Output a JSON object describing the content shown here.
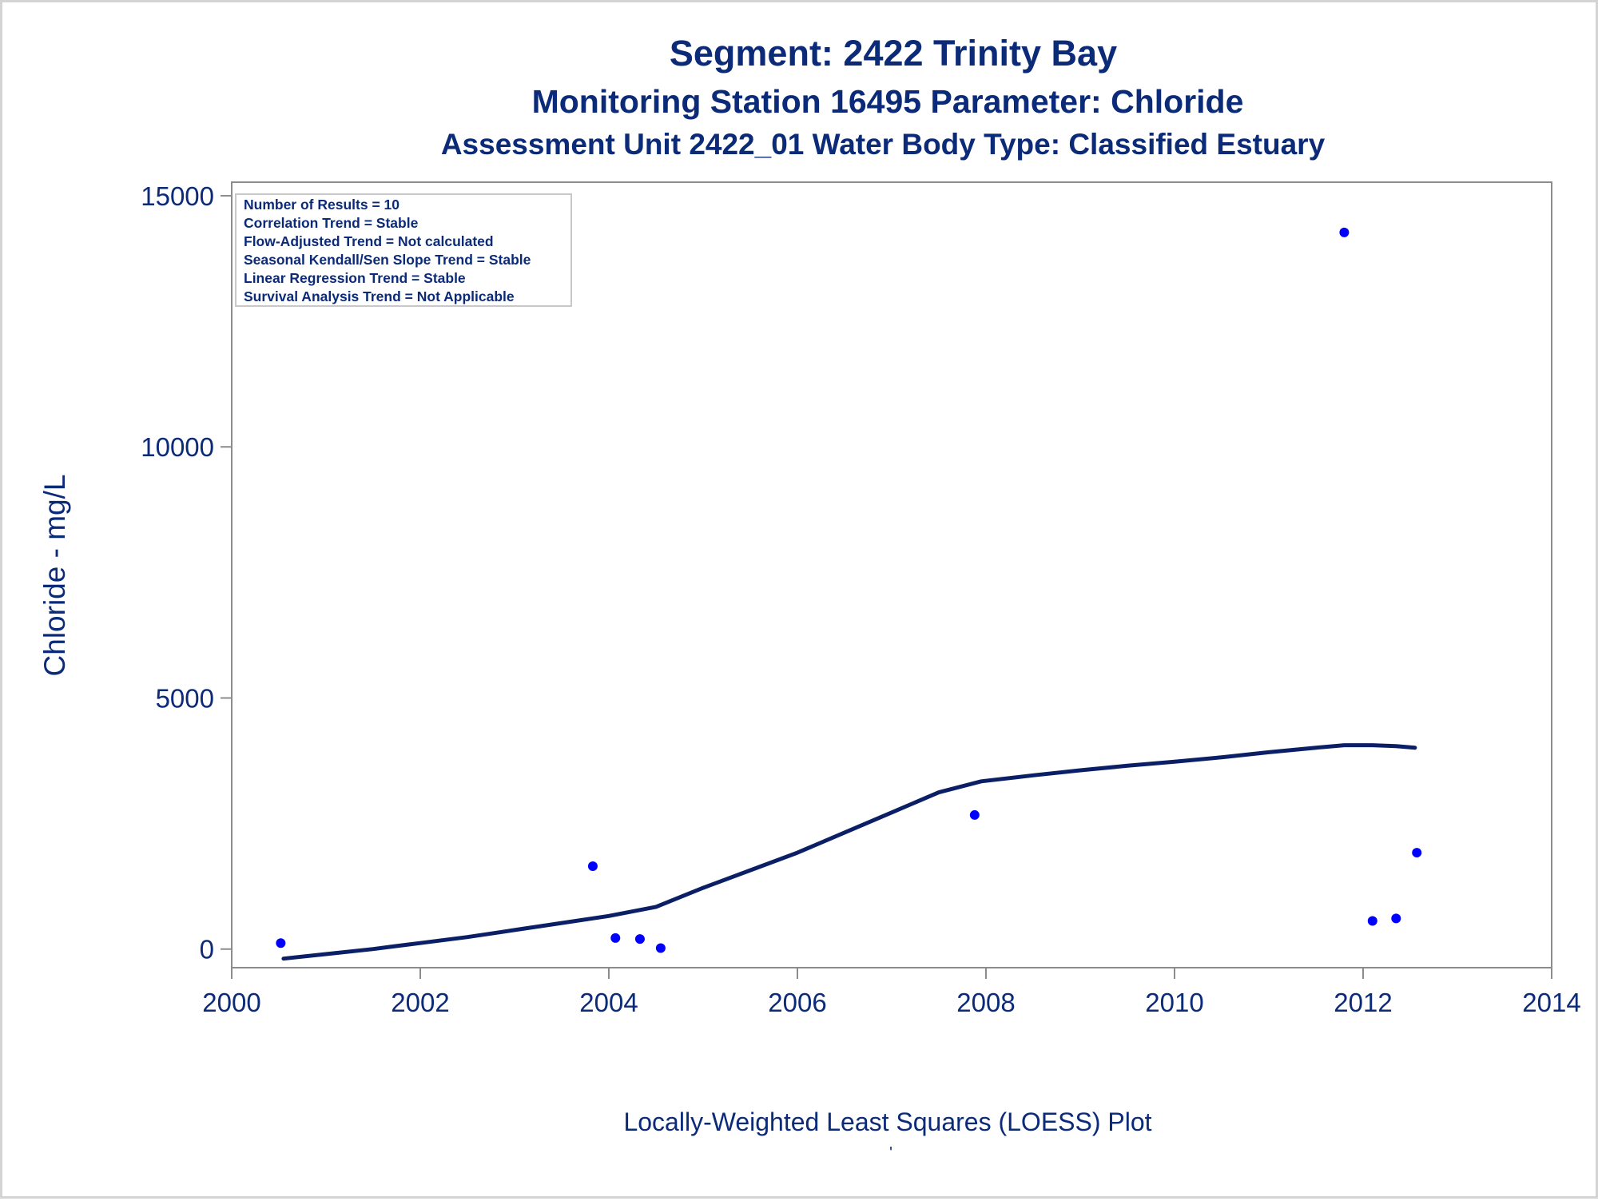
{
  "chart_data": {
    "type": "scatter",
    "title": "Segment: 2422  Trinity Bay",
    "subtitle": "Monitoring Station 16495 Parameter: Chloride",
    "subtitle2": "Assessment Unit 2422_01   Water Body Type: Classified Estuary",
    "xlabel": "Locally-Weighted Least Squares (LOESS) Plot",
    "ylabel": "Chloride - mg/L",
    "footnote": "'",
    "xlim": [
      2000,
      2014
    ],
    "ylim": [
      -370,
      15270
    ],
    "x_ticks": [
      2000,
      2002,
      2004,
      2006,
      2008,
      2010,
      2012,
      2014
    ],
    "y_ticks": [
      0,
      5000,
      10000,
      15000
    ],
    "grid": false,
    "legend": "none",
    "inset_box": {
      "position": "top-left",
      "lines": [
        "Number of Results = 10",
        "Correlation Trend = Stable",
        "Flow-Adjusted Trend = Not calculated",
        "Seasonal Kendall/Sen Slope Trend = Stable",
        "Linear Regression Trend = Stable",
        "Survival Analysis Trend = Not Applicable"
      ]
    },
    "series": [
      {
        "kind": "points",
        "color": "#0000ff",
        "points": [
          {
            "x": 2000.52,
            "y": 120
          },
          {
            "x": 2003.83,
            "y": 1650
          },
          {
            "x": 2004.07,
            "y": 220
          },
          {
            "x": 2004.33,
            "y": 200
          },
          {
            "x": 2004.55,
            "y": 20
          },
          {
            "x": 2007.88,
            "y": 2670
          },
          {
            "x": 2011.8,
            "y": 14270
          },
          {
            "x": 2012.1,
            "y": 560
          },
          {
            "x": 2012.35,
            "y": 610
          },
          {
            "x": 2012.57,
            "y": 1920
          }
        ]
      },
      {
        "kind": "loess",
        "color": "#0b1f66",
        "points": [
          {
            "x": 2000.55,
            "y": -190
          },
          {
            "x": 2001.0,
            "y": -100
          },
          {
            "x": 2001.5,
            "y": 0
          },
          {
            "x": 2001.7,
            "y": 50
          },
          {
            "x": 2002.0,
            "y": 120
          },
          {
            "x": 2002.5,
            "y": 240
          },
          {
            "x": 2003.0,
            "y": 380
          },
          {
            "x": 2003.5,
            "y": 520
          },
          {
            "x": 2004.0,
            "y": 660
          },
          {
            "x": 2004.5,
            "y": 840
          },
          {
            "x": 2005.0,
            "y": 1220
          },
          {
            "x": 2005.5,
            "y": 1570
          },
          {
            "x": 2006.0,
            "y": 1920
          },
          {
            "x": 2006.5,
            "y": 2320
          },
          {
            "x": 2007.0,
            "y": 2720
          },
          {
            "x": 2007.5,
            "y": 3120
          },
          {
            "x": 2007.95,
            "y": 3340
          },
          {
            "x": 2008.5,
            "y": 3460
          },
          {
            "x": 2009.0,
            "y": 3560
          },
          {
            "x": 2009.5,
            "y": 3650
          },
          {
            "x": 2010.0,
            "y": 3730
          },
          {
            "x": 2010.5,
            "y": 3820
          },
          {
            "x": 2011.0,
            "y": 3920
          },
          {
            "x": 2011.5,
            "y": 4010
          },
          {
            "x": 2011.8,
            "y": 4060
          },
          {
            "x": 2012.1,
            "y": 4060
          },
          {
            "x": 2012.35,
            "y": 4040
          },
          {
            "x": 2012.55,
            "y": 4010
          }
        ]
      }
    ]
  }
}
